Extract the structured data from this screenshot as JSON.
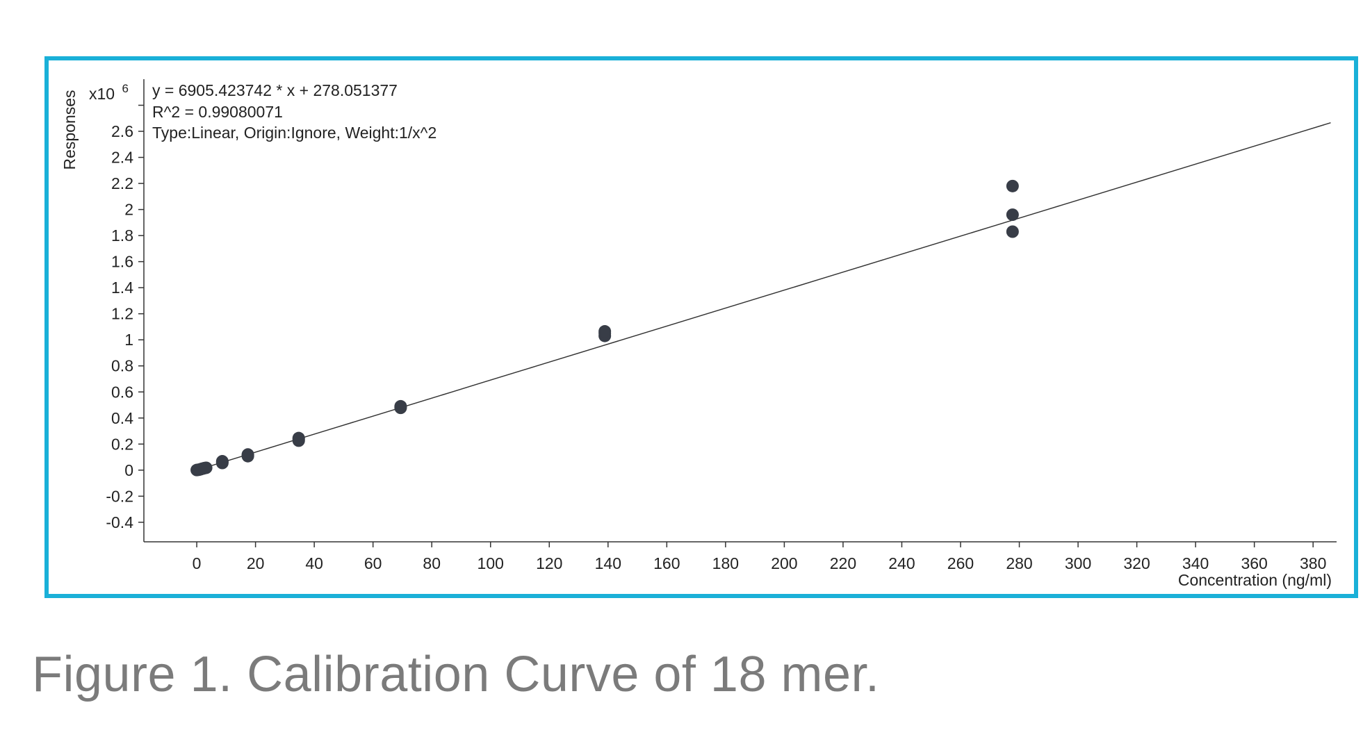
{
  "caption": "Figure 1. Calibration Curve of 18 mer.",
  "colors": {
    "frame": "#1ab0d8",
    "points": "#383d47",
    "line": "#333333",
    "caption": "#7b7b7b"
  },
  "chart_data": {
    "type": "scatter",
    "xlabel": "Concentration (ng/ml)",
    "ylabel": "Responses",
    "y_multiplier_base": "x10",
    "y_multiplier_exp": "6",
    "xlim": [
      -18,
      388
    ],
    "ylim": [
      -0.55,
      3.0
    ],
    "x_ticks": [
      0,
      20,
      40,
      60,
      80,
      100,
      120,
      140,
      160,
      180,
      200,
      220,
      240,
      260,
      280,
      300,
      320,
      340,
      360,
      380
    ],
    "x_tick_labels": [
      "0",
      "20",
      "40",
      "60",
      "80",
      "100",
      "120",
      "140",
      "160",
      "180",
      "200",
      "220",
      "240",
      "260",
      "280",
      "300",
      "320",
      "340",
      "360",
      "380"
    ],
    "y_ticks": [
      -0.4,
      -0.2,
      0,
      0.2,
      0.4,
      0.6,
      0.8,
      1,
      1.2,
      1.4,
      1.6,
      1.8,
      2,
      2.2,
      2.4,
      2.6
    ],
    "y_tick_labels": [
      "-0.4",
      "-0.2",
      "0",
      "0.2",
      "0.4",
      "0.6",
      "0.8",
      "1",
      "1.2",
      "1.4",
      "1.6",
      "1.8",
      "2",
      "2.2",
      "2.4",
      "2.6"
    ],
    "annotations": [
      "y = 6905.423742 * x  + 278.051377",
      "R^2 = 0.99080071",
      "Type:Linear, Origin:Ignore, Weight:1/x^2"
    ],
    "fit_line": {
      "slope": 0.006905423742,
      "intercept": 0.000278051377,
      "x_range": [
        0,
        386
      ]
    },
    "points": [
      {
        "x": 0,
        "y": 0.001
      },
      {
        "x": 0.6,
        "y": 0.003
      },
      {
        "x": 1.2,
        "y": 0.006
      },
      {
        "x": 1.7,
        "y": 0.01
      },
      {
        "x": 2.2,
        "y": 0.013
      },
      {
        "x": 2.7,
        "y": 0.016
      },
      {
        "x": 3.2,
        "y": 0.018
      },
      {
        "x": 8.7,
        "y": 0.055
      },
      {
        "x": 8.7,
        "y": 0.062
      },
      {
        "x": 8.7,
        "y": 0.068
      },
      {
        "x": 17.4,
        "y": 0.107
      },
      {
        "x": 17.4,
        "y": 0.115
      },
      {
        "x": 17.4,
        "y": 0.12
      },
      {
        "x": 34.7,
        "y": 0.226
      },
      {
        "x": 34.7,
        "y": 0.236
      },
      {
        "x": 34.7,
        "y": 0.246
      },
      {
        "x": 69.4,
        "y": 0.478
      },
      {
        "x": 69.4,
        "y": 0.485
      },
      {
        "x": 69.4,
        "y": 0.49
      },
      {
        "x": 138.9,
        "y": 1.03
      },
      {
        "x": 138.9,
        "y": 1.05
      },
      {
        "x": 138.9,
        "y": 1.065
      },
      {
        "x": 277.7,
        "y": 1.83
      },
      {
        "x": 277.7,
        "y": 1.96
      },
      {
        "x": 277.7,
        "y": 2.18
      }
    ],
    "grid": false,
    "legend": "none"
  }
}
